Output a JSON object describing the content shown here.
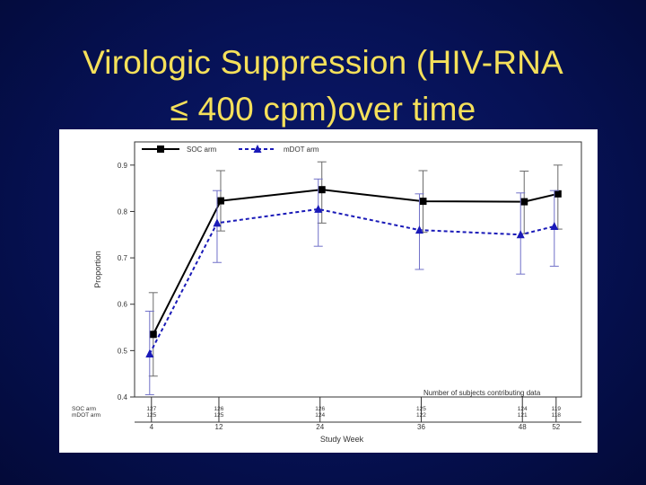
{
  "slide": {
    "title_line1": "Virologic Suppression (HIV-RNA",
    "title_line2": "≤ 400 cpm)over time"
  },
  "colors": {
    "background": "#061154",
    "title": "#f5e05a",
    "soc_series": "#000000",
    "mdot_series": "#1a1ab8",
    "soc_errorbar": "#6a6a6a",
    "mdot_errorbar": "#7070c8"
  },
  "chart_data": {
    "type": "line",
    "xlabel": "Study Week",
    "ylabel": "Proportion",
    "x": [
      4,
      12,
      24,
      36,
      48,
      52
    ],
    "xlim": [
      2,
      55
    ],
    "ylim": [
      0.4,
      0.95
    ],
    "yticks": [
      "0.4",
      "0.5",
      "0.6",
      "0.7",
      "0.8",
      "0.9"
    ],
    "grid": false,
    "legend_position": "top-left",
    "series": [
      {
        "name": "SOC arm",
        "style": "solid-square",
        "values": [
          0.535,
          0.823,
          0.847,
          0.822,
          0.821,
          0.838
        ],
        "ci_low": [
          0.445,
          0.758,
          0.775,
          0.755,
          0.752,
          0.762
        ],
        "ci_high": [
          0.625,
          0.888,
          0.907,
          0.888,
          0.887,
          0.9
        ]
      },
      {
        "name": "mDOT arm",
        "style": "dashed-triangle",
        "values": [
          0.493,
          0.775,
          0.805,
          0.76,
          0.75,
          0.768
        ],
        "ci_low": [
          0.405,
          0.69,
          0.725,
          0.675,
          0.665,
          0.682
        ],
        "ci_high": [
          0.585,
          0.845,
          0.87,
          0.838,
          0.84,
          0.845
        ]
      }
    ],
    "subjects_table": {
      "title": "Number of subjects contributing data",
      "rows": [
        {
          "label": "SOC arm",
          "counts": [
            "127",
            "126",
            "126",
            "125",
            "124",
            "119"
          ]
        },
        {
          "label": "mDOT arm",
          "counts": [
            "125",
            "125",
            "124",
            "122",
            "121",
            "118"
          ]
        }
      ]
    }
  }
}
